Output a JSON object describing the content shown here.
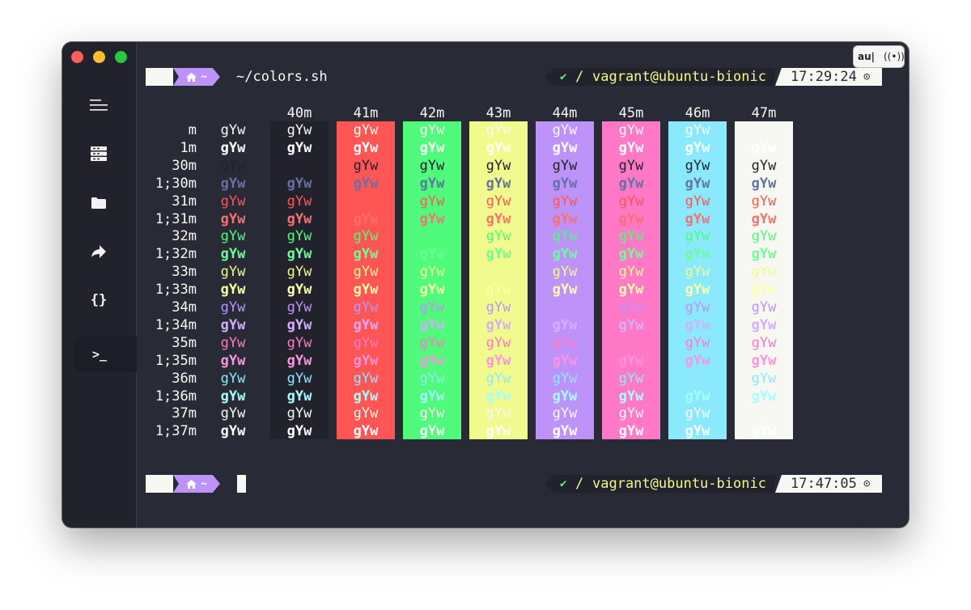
{
  "window": {
    "top_widget": {
      "text": "au|",
      "icon": "broadcast-icon"
    }
  },
  "sidebar": {
    "items": [
      {
        "name": "menu",
        "icon": "hamburger-menu-icon"
      },
      {
        "name": "servers",
        "icon": "server-icon"
      },
      {
        "name": "files",
        "icon": "folder-icon"
      },
      {
        "name": "port-forwarding",
        "icon": "forward-arrow-icon"
      },
      {
        "name": "snippets",
        "icon": "curly-braces-icon",
        "label": "{}"
      },
      {
        "name": "terminal",
        "icon": "terminal-prompt-icon",
        "label": ">_",
        "active": true
      }
    ]
  },
  "prompt1": {
    "segment": "~",
    "icon": "home-icon",
    "command": "~/colors.sh",
    "status_icon": "check-icon",
    "status": "✔",
    "separator": "/",
    "user_host": "vagrant@ubuntu-bionic",
    "time": "17:29:24",
    "clock_icon": "clock-icon",
    "clock": "⊙"
  },
  "prompt2": {
    "segment": "~",
    "icon": "home-icon",
    "command": "",
    "status_icon": "check-icon",
    "status": "✔",
    "separator": "/",
    "user_host": "vagrant@ubuntu-bionic",
    "time": "17:47:05",
    "clock_icon": "clock-icon",
    "clock": "⊙"
  },
  "color_table": {
    "sample_text": "gYw",
    "backgrounds": [
      {
        "label": "",
        "color": ""
      },
      {
        "label": "40m",
        "color": "#21222c"
      },
      {
        "label": "41m",
        "color": "#ff5555"
      },
      {
        "label": "42m",
        "color": "#50fa7b"
      },
      {
        "label": "43m",
        "color": "#f1fa8c"
      },
      {
        "label": "44m",
        "color": "#bd93f9"
      },
      {
        "label": "45m",
        "color": "#ff79c6"
      },
      {
        "label": "46m",
        "color": "#8be9fd"
      },
      {
        "label": "47m",
        "color": "#f8f8f2"
      }
    ],
    "rows": [
      {
        "label": "m",
        "color": "#f8f8f2",
        "bold": false
      },
      {
        "label": "1m",
        "color": "#ffffff",
        "bold": true
      },
      {
        "label": "30m",
        "color": "#21222c",
        "bold": false
      },
      {
        "label": "1;30m",
        "color": "#6272a4",
        "bold": true
      },
      {
        "label": "31m",
        "color": "#ff5555",
        "bold": false
      },
      {
        "label": "1;31m",
        "color": "#ff6e6e",
        "bold": true
      },
      {
        "label": "32m",
        "color": "#50fa7b",
        "bold": false
      },
      {
        "label": "1;32m",
        "color": "#69ff94",
        "bold": true
      },
      {
        "label": "33m",
        "color": "#f1fa8c",
        "bold": false
      },
      {
        "label": "1;33m",
        "color": "#ffffa5",
        "bold": true
      },
      {
        "label": "34m",
        "color": "#bd93f9",
        "bold": false
      },
      {
        "label": "1;34m",
        "color": "#d6acff",
        "bold": true
      },
      {
        "label": "35m",
        "color": "#ff79c6",
        "bold": false
      },
      {
        "label": "1;35m",
        "color": "#ff92df",
        "bold": true
      },
      {
        "label": "36m",
        "color": "#8be9fd",
        "bold": false
      },
      {
        "label": "1;36m",
        "color": "#a4ffff",
        "bold": true
      },
      {
        "label": "37m",
        "color": "#f8f8f2",
        "bold": false
      },
      {
        "label": "1;37m",
        "color": "#ffffff",
        "bold": true
      }
    ]
  }
}
